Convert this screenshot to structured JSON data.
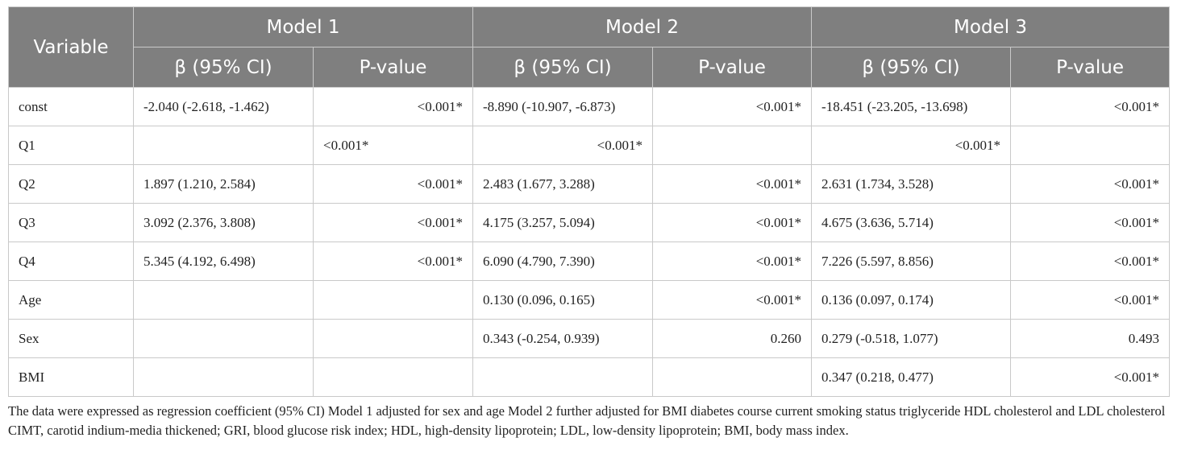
{
  "header": {
    "variable": "Variable",
    "models": [
      "Model 1",
      "Model 2",
      "Model 3"
    ],
    "beta": "β (95% CI)",
    "pvalue": "P-value"
  },
  "rows": [
    {
      "variable": "const",
      "cells": [
        {
          "beta": "-2.040 (-2.618, -1.462)",
          "p": "<0.001*"
        },
        {
          "beta": "-8.890 (-10.907, -6.873)",
          "p": "<0.001*"
        },
        {
          "beta": "-18.451 (-23.205, -13.698)",
          "p": "<0.001*"
        }
      ]
    },
    {
      "variable": "Q1",
      "cells": [
        {
          "beta": "",
          "p": "<0.001*"
        },
        {
          "beta": "<0.001*",
          "p": ""
        },
        {
          "beta": "<0.001*",
          "p": ""
        }
      ]
    },
    {
      "variable": "Q2",
      "cells": [
        {
          "beta": "1.897 (1.210, 2.584)",
          "p": "<0.001*"
        },
        {
          "beta": "2.483 (1.677, 3.288)",
          "p": "<0.001*"
        },
        {
          "beta": "2.631 (1.734, 3.528)",
          "p": "<0.001*"
        }
      ]
    },
    {
      "variable": "Q3",
      "cells": [
        {
          "beta": "3.092 (2.376, 3.808)",
          "p": "<0.001*"
        },
        {
          "beta": "4.175 (3.257, 5.094)",
          "p": "<0.001*"
        },
        {
          "beta": "4.675 (3.636, 5.714)",
          "p": "<0.001*"
        }
      ]
    },
    {
      "variable": "Q4",
      "cells": [
        {
          "beta": "5.345 (4.192, 6.498)",
          "p": "<0.001*"
        },
        {
          "beta": "6.090 (4.790, 7.390)",
          "p": "<0.001*"
        },
        {
          "beta": "7.226 (5.597, 8.856)",
          "p": "<0.001*"
        }
      ]
    },
    {
      "variable": "Age",
      "cells": [
        {
          "beta": "",
          "p": ""
        },
        {
          "beta": "0.130 (0.096, 0.165)",
          "p": "<0.001*"
        },
        {
          "beta": "0.136 (0.097, 0.174)",
          "p": "<0.001*"
        }
      ]
    },
    {
      "variable": "Sex",
      "cells": [
        {
          "beta": "",
          "p": ""
        },
        {
          "beta": "0.343 (-0.254, 0.939)",
          "p": "0.260"
        },
        {
          "beta": "0.279 (-0.518, 1.077)",
          "p": "0.493"
        }
      ]
    },
    {
      "variable": "BMI",
      "cells": [
        {
          "beta": "",
          "p": ""
        },
        {
          "beta": "",
          "p": ""
        },
        {
          "beta": "0.347 (0.218, 0.477)",
          "p": "<0.001*"
        }
      ]
    }
  ],
  "footnote": "The data were expressed as regression coefficient (95% CI) Model 1 adjusted for sex and age Model 2 further adjusted for BMI diabetes course current smoking status triglyceride HDL cholesterol and LDL cholesterol CIMT, carotid indium-media thickened; GRI, blood glucose risk index; HDL, high-density lipoprotein; LDL, low-density lipoprotein; BMI, body mass index."
}
